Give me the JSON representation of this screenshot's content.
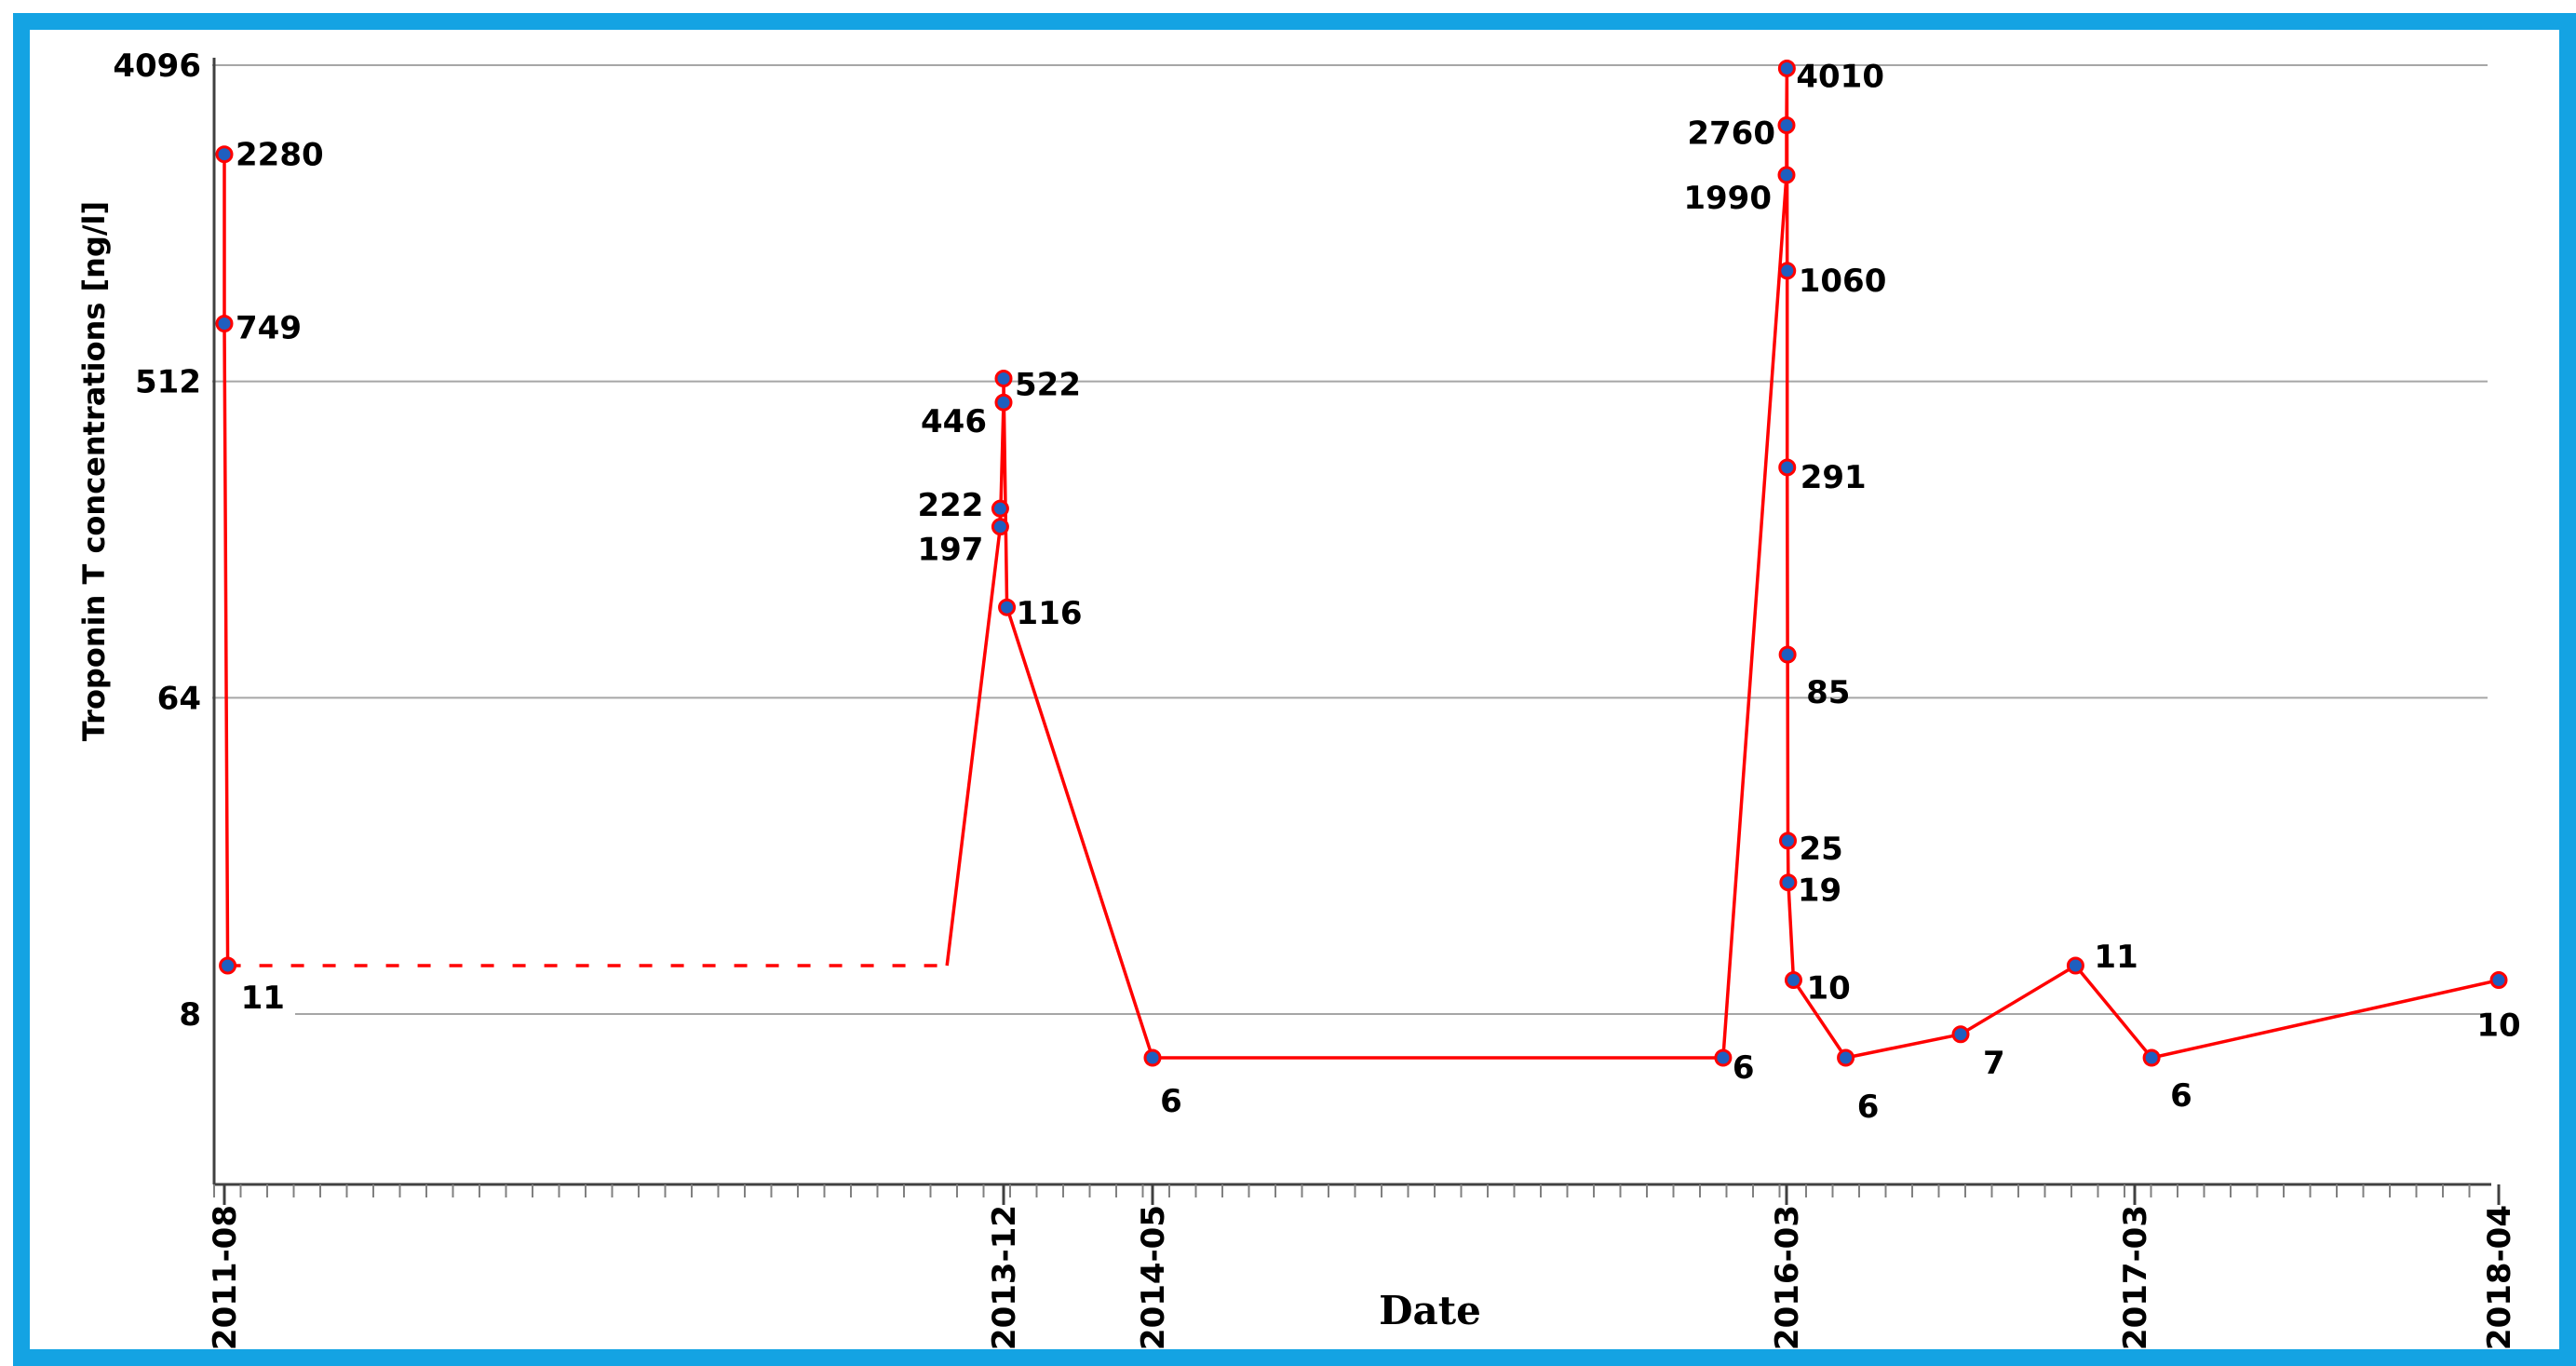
{
  "chart_data": {
    "type": "line",
    "title": "",
    "xlabel": "Date",
    "ylabel": "Troponin T concentrations [ng/l]",
    "yscale": "log2",
    "ylim": [
      2,
      4096
    ],
    "xlim": [
      "2011-08",
      "2018-04"
    ],
    "y_ticks": [
      {
        "value": 8,
        "label": "8"
      },
      {
        "value": 64,
        "label": "64"
      },
      {
        "value": 512,
        "label": "512"
      },
      {
        "value": 4096,
        "label": "4096"
      }
    ],
    "x_ticks": [
      {
        "t": 2011.58,
        "label": "2011-08"
      },
      {
        "t": 2013.92,
        "label": "2013-12"
      },
      {
        "t": 2014.37,
        "label": "2014-05"
      },
      {
        "t": 2016.17,
        "label": "2016-03"
      },
      {
        "t": 2017.17,
        "label": "2017-03"
      },
      {
        "t": 2018.25,
        "label": "2018-04"
      }
    ],
    "grid": true,
    "series": [
      {
        "name": "Troponin T",
        "color": "#ff0000",
        "marker_color": "#1f5fbf",
        "points": [
          {
            "t": 2011.58,
            "value": 2280,
            "label": "2280"
          },
          {
            "t": 2011.58,
            "value": 749,
            "label": "749"
          },
          {
            "t": 2011.59,
            "value": 11,
            "label": "11"
          },
          {
            "t": 2013.91,
            "value": 222,
            "label": "222"
          },
          {
            "t": 2013.91,
            "value": 197,
            "label": "197"
          },
          {
            "t": 2013.92,
            "value": 446,
            "label": "446"
          },
          {
            "t": 2013.92,
            "value": 522,
            "label": "522"
          },
          {
            "t": 2013.93,
            "value": 116,
            "label": "116"
          },
          {
            "t": 2014.37,
            "value": 6,
            "label": "6"
          },
          {
            "t": 2015.99,
            "value": 6,
            "label": "6"
          },
          {
            "t": 2016.17,
            "value": 1990,
            "label": "1990"
          },
          {
            "t": 2016.17,
            "value": 2760,
            "label": "2760"
          },
          {
            "t": 2016.171,
            "value": 4010,
            "label": "4010"
          },
          {
            "t": 2016.172,
            "value": 1060,
            "label": "1060"
          },
          {
            "t": 2016.172,
            "value": 291,
            "label": "291"
          },
          {
            "t": 2016.173,
            "value": 85,
            "label": "85"
          },
          {
            "t": 2016.174,
            "value": 25,
            "label": "25"
          },
          {
            "t": 2016.175,
            "value": 19,
            "label": "19"
          },
          {
            "t": 2016.19,
            "value": 10,
            "label": "10"
          },
          {
            "t": 2016.34,
            "value": 6,
            "label": "6"
          },
          {
            "t": 2016.67,
            "value": 7,
            "label": "7"
          },
          {
            "t": 2017.0,
            "value": 11,
            "label": "11"
          },
          {
            "t": 2017.22,
            "value": 6,
            "label": "6"
          },
          {
            "t": 2018.25,
            "value": 10,
            "label": "10"
          }
        ]
      }
    ],
    "gap": {
      "from": {
        "t": 2011.59,
        "value": 11
      },
      "to": {
        "t": 2013.75,
        "value": 11
      },
      "style": "dashed"
    },
    "line_segments": [
      [
        0,
        2
      ],
      [
        3,
        23
      ]
    ],
    "gap_connector_to_index": 4
  }
}
